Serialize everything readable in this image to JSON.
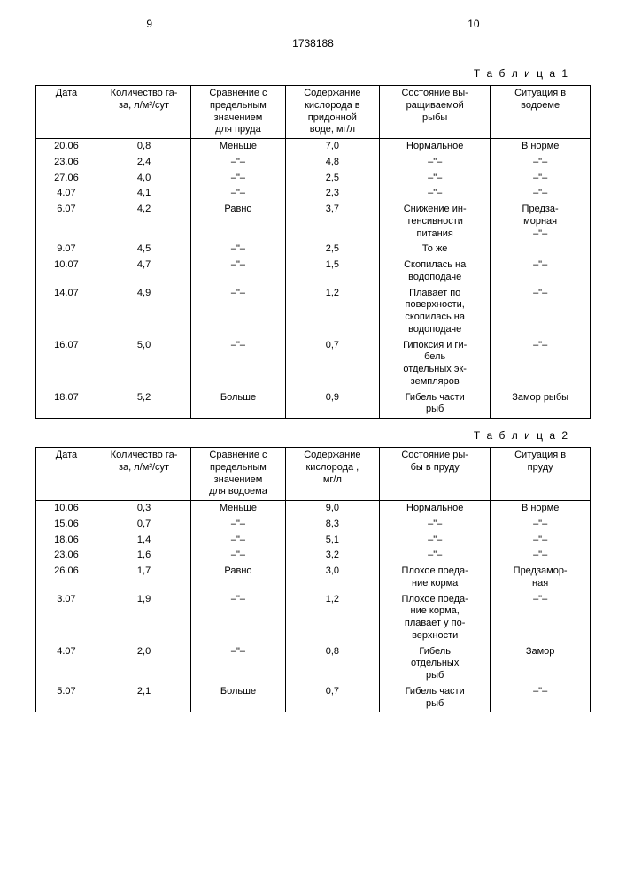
{
  "page_left": "9",
  "page_right": "10",
  "doc_number": "1738188",
  "table1": {
    "label": "Т а б л и ц а 1",
    "headers": [
      "Дата",
      "Количество га-\nза, л/м²/сут",
      "Сравнение с\nпредельным\nзначением\nдля пруда",
      "Содержание\nкислорода в\nпридонной\nводе, мг/л",
      "Состояние вы-\nращиваемой\nрыбы",
      "Ситуация в\nводоеме"
    ],
    "rows": [
      [
        "20.06",
        "0,8",
        "Меньше",
        "7,0",
        "Нормальное",
        "В норме"
      ],
      [
        "23.06",
        "2,4",
        "–\"–",
        "4,8",
        "–\"–",
        "–\"–"
      ],
      [
        "27.06",
        "4,0",
        "–\"–",
        "2,5",
        "–\"–",
        "–\"–"
      ],
      [
        "4.07",
        "4,1",
        "–\"–",
        "2,3",
        "–\"–",
        "–\"–"
      ],
      [
        "6.07",
        "4,2",
        "Равно",
        "3,7",
        "Снижение ин-\nтенсивности\nпитания",
        "Предза-\nморная\n–\"–"
      ],
      [
        "9.07",
        "4,5",
        "–\"–",
        "2,5",
        "То же",
        ""
      ],
      [
        "10.07",
        "4,7",
        "–\"–",
        "1,5",
        "Скопилась на\nводоподаче",
        "–\"–"
      ],
      [
        "14.07",
        "4,9",
        "–\"–",
        "1,2",
        "Плавает по\nповерхности,\nскопилась на\nводоподаче",
        "–\"–"
      ],
      [
        "16.07",
        "5,0",
        "–\"–",
        "0,7",
        "Гипоксия и ги-\nбель\nотдельных эк-\nземпляров",
        "–\"–"
      ],
      [
        "18.07",
        "5,2",
        "Больше",
        "0,9",
        "Гибель части\nрыб",
        "Замор рыбы"
      ]
    ]
  },
  "table2": {
    "label": "Т а б л и ц а 2",
    "headers": [
      "Дата",
      "Количество га-\nза, л/м²/сут",
      "Сравнение с\nпредельным\nзначением\nдля водоема",
      "Содержание\nкислорода ,\nмг/л",
      "Состояние ры-\nбы в пруду",
      "Ситуация в\nпруду"
    ],
    "rows": [
      [
        "10.06",
        "0,3",
        "Меньше",
        "9,0",
        "Нормальное",
        "В норме"
      ],
      [
        "15.06",
        "0,7",
        "–\"–",
        "8,3",
        "–\"–",
        "–\"–"
      ],
      [
        "18.06",
        "1,4",
        "–\"–",
        "5,1",
        "–\"–",
        "–\"–"
      ],
      [
        "23.06",
        "1,6",
        "–\"–",
        "3,2",
        "–\"–",
        "–\"–"
      ],
      [
        "26.06",
        "1,7",
        "Равно",
        "3,0",
        "Плохое поеда-\nние корма",
        "Предзамор-\nная"
      ],
      [
        "3.07",
        "1,9",
        "–\"–",
        "1,2",
        "Плохое поеда-\nние корма,\nплавает у по-\nверхности",
        "–\"–"
      ],
      [
        "4.07",
        "2,0",
        "–\"–",
        "0,8",
        "Гибель\nотдельных\nрыб",
        "Замор"
      ],
      [
        "5.07",
        "2,1",
        "Больше",
        "0,7",
        "Гибель части\nрыб",
        "–\"–"
      ]
    ]
  }
}
